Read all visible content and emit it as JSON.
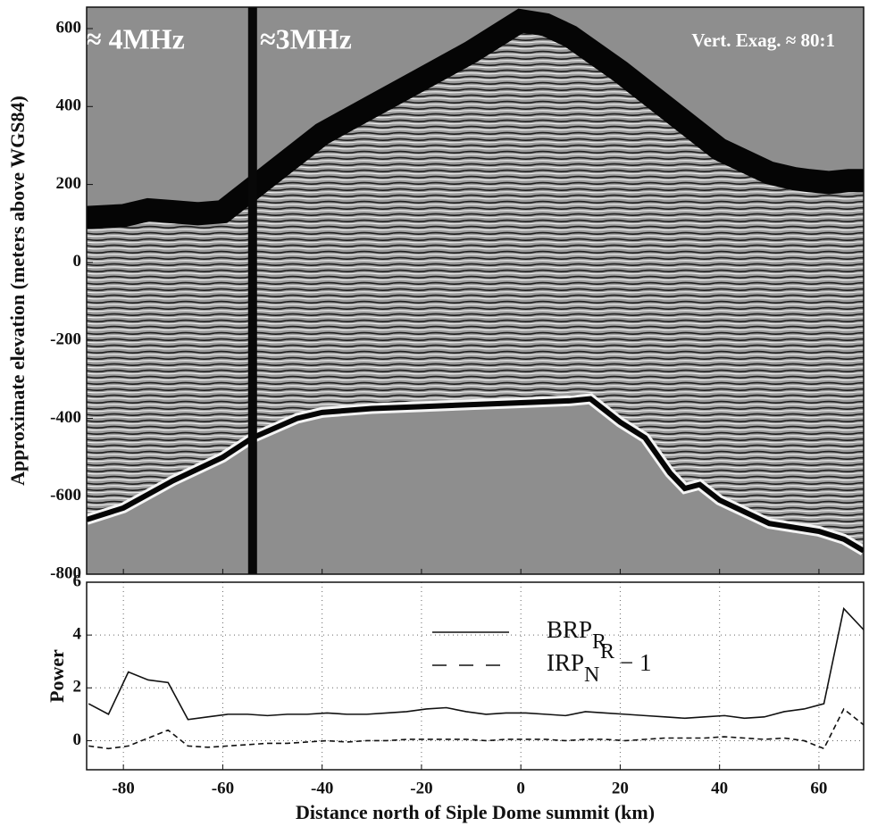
{
  "chart_data": [
    {
      "type": "radargram",
      "ylabel": "Approximate elevation (meters above WGS84)",
      "annotations": [
        "≈ 4MHz",
        "≈3MHz",
        "Vert. Exag. ≈ 80:1"
      ],
      "xlim": [
        -87.4,
        69
      ],
      "ylim": [
        -800,
        655
      ],
      "yticks": [
        -800,
        -600,
        -400,
        -200,
        0,
        200,
        400,
        600
      ],
      "boundary_x": -54,
      "surface": {
        "x": [
          -87.4,
          -80,
          -75,
          -70,
          -65,
          -60,
          -55,
          -50,
          -40,
          -30,
          -20,
          -10,
          0,
          5,
          10,
          20,
          30,
          40,
          50,
          55,
          58,
          62,
          66,
          69
        ],
        "values": [
          115,
          120,
          135,
          130,
          125,
          130,
          180,
          230,
          330,
          400,
          470,
          540,
          620,
          610,
          580,
          490,
          390,
          290,
          230,
          215,
          210,
          205,
          210,
          210
        ]
      },
      "bed": {
        "x": [
          -87.4,
          -80,
          -70,
          -60,
          -54,
          -45,
          -40,
          -30,
          -20,
          -10,
          0,
          10,
          14,
          20,
          25,
          30,
          33,
          36,
          40,
          50,
          60,
          65,
          69
        ],
        "values": [
          -660,
          -630,
          -560,
          -500,
          -450,
          -400,
          -385,
          -375,
          -370,
          -365,
          -360,
          -355,
          -350,
          -410,
          -450,
          -540,
          -580,
          -570,
          -610,
          -670,
          -690,
          -710,
          -740
        ]
      }
    },
    {
      "type": "line",
      "xlabel": "Distance north of Siple Dome summit (km)",
      "ylabel": "Power",
      "xlim": [
        -87.4,
        69
      ],
      "ylim": [
        -1.1,
        6
      ],
      "xticks": [
        -80,
        -60,
        -40,
        -20,
        0,
        20,
        40,
        60
      ],
      "yticks": [
        0,
        2,
        4,
        6
      ],
      "grid": true,
      "x": [
        -87,
        -83,
        -79,
        -75,
        -71,
        -67,
        -63,
        -59,
        -55,
        -51,
        -47,
        -43,
        -39,
        -35,
        -31,
        -27,
        -23,
        -19,
        -15,
        -11,
        -7,
        -3,
        1,
        5,
        9,
        13,
        17,
        21,
        25,
        29,
        33,
        37,
        41,
        45,
        49,
        53,
        57,
        61,
        65,
        69
      ],
      "series": [
        {
          "name": "BRP",
          "name_sub": "R",
          "color": "#111111",
          "dash": "solid",
          "values": [
            1.4,
            1.0,
            2.6,
            2.3,
            2.2,
            0.8,
            0.9,
            1.0,
            1.0,
            0.95,
            1.0,
            1.0,
            1.05,
            1.0,
            1.0,
            1.05,
            1.1,
            1.2,
            1.25,
            1.1,
            1.0,
            1.05,
            1.05,
            1.0,
            0.95,
            1.1,
            1.05,
            1.0,
            0.95,
            0.9,
            0.85,
            0.9,
            0.95,
            0.85,
            0.9,
            1.1,
            1.2,
            1.4,
            5.0,
            4.2
          ]
        },
        {
          "name": "IRP",
          "name_sub": "N",
          "name_sup": "R",
          "name_suffix": "− 1",
          "color": "#111111",
          "dash": "dashed",
          "values": [
            -0.2,
            -0.3,
            -0.2,
            0.1,
            0.4,
            -0.2,
            -0.25,
            -0.2,
            -0.15,
            -0.1,
            -0.1,
            -0.05,
            0,
            -0.05,
            0,
            0,
            0.05,
            0.05,
            0.05,
            0.05,
            0,
            0.05,
            0.05,
            0.05,
            0,
            0.05,
            0.05,
            0,
            0.05,
            0.1,
            0.1,
            0.1,
            0.15,
            0.1,
            0.05,
            0.1,
            0,
            -0.3,
            1.2,
            0.6
          ]
        }
      ]
    }
  ]
}
